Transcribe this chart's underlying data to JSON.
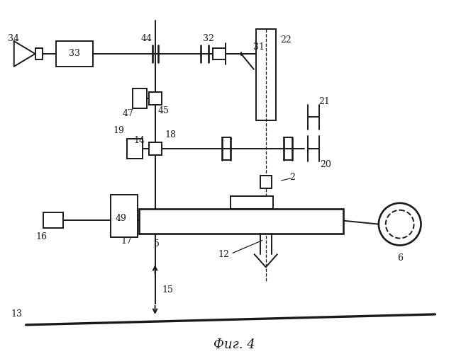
{
  "bg_color": "#ffffff",
  "line_color": "#1a1a1a",
  "lw": 1.4,
  "fig_width": 6.57,
  "fig_height": 5.0,
  "dpi": 100,
  "title": "Фиг. 4"
}
